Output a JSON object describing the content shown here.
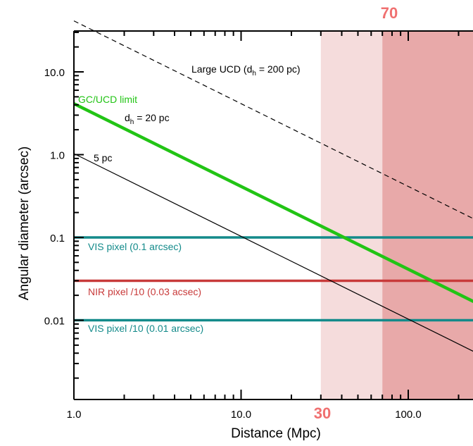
{
  "chart_data": {
    "type": "line",
    "xlabel": "Distance (Mpc)",
    "ylabel": "Angular diameter (arcsec)",
    "xscale": "log",
    "yscale": "log",
    "xlim": [
      1.0,
      260.0
    ],
    "ylim": [
      0.002,
      30.0
    ],
    "x_tick_labels": [
      "1.0",
      "10.0",
      "100.0"
    ],
    "y_tick_labels": [
      "10.0",
      "1.0",
      "0.1",
      "0.01"
    ],
    "grid": false,
    "series": [
      {
        "name": "Large UCD (dh = 200 pc)",
        "style": "dashed",
        "color": "#000000",
        "x": [
          1.0,
          260.0
        ],
        "y": [
          41.3,
          0.159
        ]
      },
      {
        "name": "dh = 20 pc",
        "style": "solid",
        "color": "#22c415",
        "x": [
          1.0,
          260.0
        ],
        "y": [
          4.13,
          0.0159
        ]
      },
      {
        "name": "5 pc",
        "style": "solid",
        "color": "#000000",
        "x": [
          1.0,
          260.0
        ],
        "y": [
          1.03,
          0.00397
        ]
      }
    ],
    "reference_lines": [
      {
        "label": "VIS pixel (0.1 arcsec)",
        "y": 0.1,
        "color": "#138a8a"
      },
      {
        "label": "NIR pixel /10 (0.03 acsec)",
        "y": 0.03,
        "color": "#c83a3a"
      },
      {
        "label": "VIS pixel /10 (0.01 arcsec)",
        "y": 0.01,
        "color": "#138a8a"
      }
    ],
    "shaded_regions": [
      {
        "from": 30,
        "to": 70,
        "color": "#f5dcdc"
      },
      {
        "from": 70,
        "to": 260,
        "color": "#e8a9a9"
      }
    ],
    "annotations": {
      "gc_ucd_limit": "GC/UCD limit",
      "large_ucd": "Large UCD (d",
      "large_ucd_sub": "h",
      "large_ucd_tail": " = 200 pc)",
      "dh20": "d",
      "dh20_sub": "h",
      "dh20_tail": " = 20 pc",
      "five_pc": "5 pc",
      "mark_30": "30",
      "mark_70": "70"
    },
    "colors": {
      "green": "#22c415",
      "teal": "#138a8a",
      "red": "#c83a3a",
      "mark_label": "#f07070"
    }
  }
}
